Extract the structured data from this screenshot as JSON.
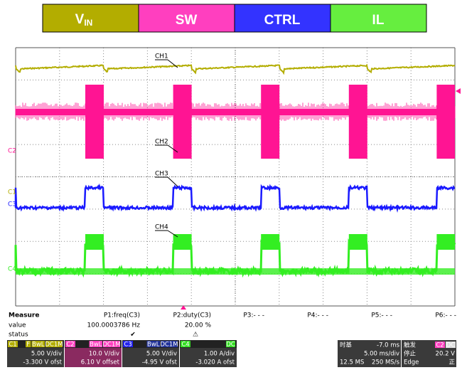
{
  "legend": [
    {
      "label": "V",
      "sub": "IN"
    },
    {
      "label": "SW"
    },
    {
      "label": "CTRL"
    },
    {
      "label": "IL"
    }
  ],
  "traces": [
    "CH1",
    "CH2",
    "CH3",
    "CH4"
  ],
  "markers": [
    "C2",
    "C1",
    "C3",
    "C4"
  ],
  "measure": {
    "title": "Measure",
    "rows": [
      "value",
      "status"
    ],
    "params": [
      {
        "name": "P1:freq(C3)",
        "value": "100.0003786 Hz",
        "status": "✔"
      },
      {
        "name": "P2:duty(C3)",
        "value": "20.00 %",
        "status": "⚠"
      },
      {
        "name": "P3:- - -"
      },
      {
        "name": "P4:- - -"
      },
      {
        "name": "P5:- - -"
      },
      {
        "name": "P6:- - -"
      }
    ]
  },
  "channels": [
    {
      "id": "C1",
      "tags": [
        "F",
        "BwL",
        "DC1M"
      ],
      "scale": "5.00 V/div",
      "offset": "-3.300 V ofst"
    },
    {
      "id": "C2",
      "tags": [
        "BwL",
        "DC1M"
      ],
      "scale": "10.0 V/div",
      "offset": "6.10 V offset"
    },
    {
      "id": "C3",
      "tags": [
        "BwL",
        "DC1M"
      ],
      "scale": "5.00 V/div",
      "offset": "-4.95 V ofst"
    },
    {
      "id": "C4",
      "tags": [
        "DC"
      ],
      "scale": "1.00 A/div",
      "offset": "-3.020 A ofst"
    }
  ],
  "timebase": {
    "label": "时基",
    "delay": "-7.0 ms",
    "rate": "5.00 ms/div",
    "samples": "12.5 MS",
    "srate": "250 MS/s"
  },
  "trigger": {
    "label": "触发",
    "tags": [
      "C2",
      "DC"
    ],
    "mode": "停止",
    "level": "20.2 V",
    "type": "Edge",
    "slope": "正"
  }
}
